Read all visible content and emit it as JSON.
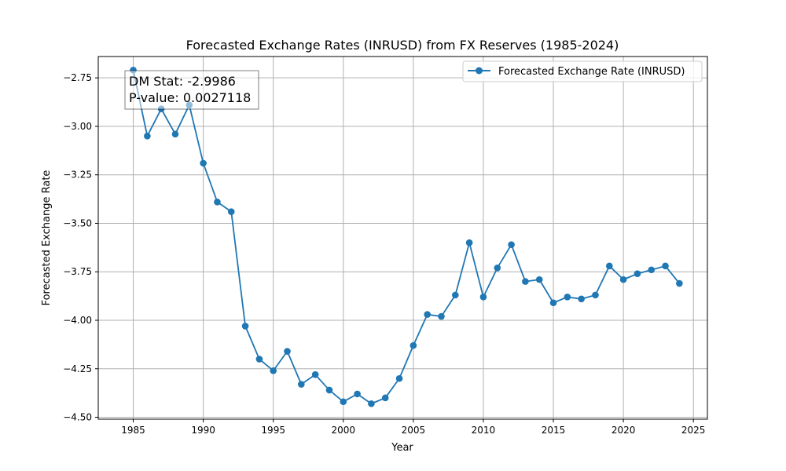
{
  "chart_data": {
    "type": "line",
    "title": "Forecasted Exchange Rates (INRUSD) from FX Reserves (1985-2024)",
    "xlabel": "Year",
    "ylabel": "Forecasted Exchange Rate",
    "xlim": [
      1982.5,
      2026.0
    ],
    "ylim": [
      -4.51,
      -2.64
    ],
    "x_ticks": [
      1985,
      1990,
      1995,
      2000,
      2005,
      2010,
      2015,
      2020,
      2025
    ],
    "x_tick_labels": [
      "1985",
      "1990",
      "1995",
      "2000",
      "2005",
      "2010",
      "2015",
      "2020",
      "2025"
    ],
    "y_ticks": [
      -2.75,
      -3.0,
      -3.25,
      -3.5,
      -3.75,
      -4.0,
      -4.25,
      -4.5
    ],
    "y_tick_labels": [
      "−2.75",
      "−3.00",
      "−3.25",
      "−3.50",
      "−3.75",
      "−4.00",
      "−4.25",
      "−4.50"
    ],
    "grid": true,
    "legend_position": "top-right",
    "series": [
      {
        "name": "Forecasted Exchange Rate (INRUSD)",
        "color": "#1f77b4",
        "marker": "circle",
        "x": [
          1985,
          1986,
          1987,
          1988,
          1989,
          1990,
          1991,
          1992,
          1993,
          1994,
          1995,
          1996,
          1997,
          1998,
          1999,
          2000,
          2001,
          2002,
          2003,
          2004,
          2005,
          2006,
          2007,
          2008,
          2009,
          2010,
          2011,
          2012,
          2013,
          2014,
          2015,
          2016,
          2017,
          2018,
          2019,
          2020,
          2021,
          2022,
          2023,
          2024
        ],
        "values": [
          -2.71,
          -3.05,
          -2.91,
          -3.04,
          -2.89,
          -3.19,
          -3.39,
          -3.44,
          -4.03,
          -4.2,
          -4.26,
          -4.16,
          -4.33,
          -4.28,
          -4.36,
          -4.42,
          -4.38,
          -4.43,
          -4.4,
          -4.3,
          -4.13,
          -3.97,
          -3.98,
          -3.87,
          -3.6,
          -3.88,
          -3.73,
          -3.61,
          -3.8,
          -3.79,
          -3.91,
          -3.88,
          -3.89,
          -3.87,
          -3.72,
          -3.79,
          -3.76,
          -3.74,
          -3.72,
          -3.81
        ]
      }
    ],
    "annotations": [
      {
        "lines": [
          "DM Stat: -2.9986",
          "P-value: 0.0027118"
        ],
        "position": "top-left"
      }
    ]
  }
}
